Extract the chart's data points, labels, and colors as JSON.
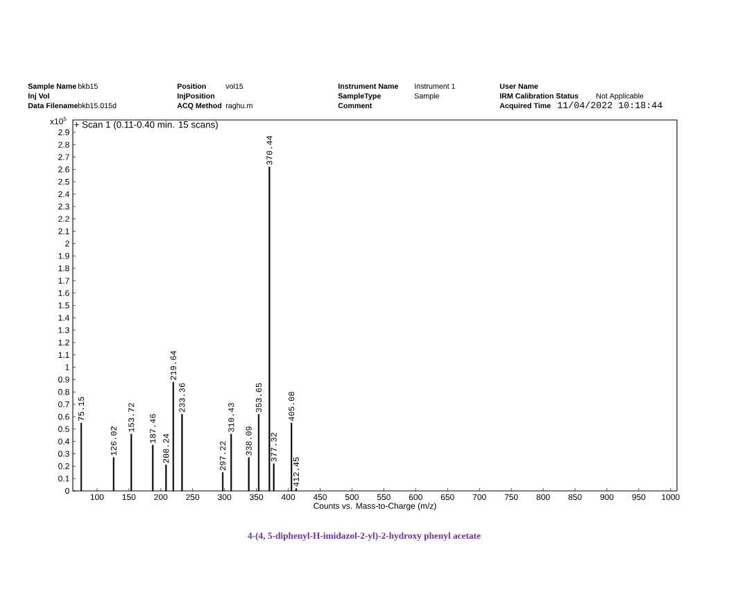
{
  "chart_data": {
    "type": "bar",
    "xlabel": "Counts vs. Mass-to-Charge (m/z)",
    "x": [
      75.15,
      126.02,
      153.72,
      187.46,
      208.24,
      219.64,
      233.36,
      297.22,
      310.43,
      338.09,
      353.65,
      370.44,
      377.32,
      405.08,
      412.45
    ],
    "values": [
      0.55,
      0.27,
      0.46,
      0.37,
      0.21,
      0.88,
      0.62,
      0.15,
      0.46,
      0.27,
      0.62,
      2.62,
      0.22,
      0.55,
      0.02
    ],
    "color": "#000000",
    "xlim": [
      62,
      1010
    ],
    "xticks": [
      100,
      150,
      200,
      250,
      300,
      350,
      400,
      450,
      500,
      550,
      600,
      650,
      700,
      750,
      800,
      850,
      900,
      950,
      1000
    ],
    "ylim": [
      0,
      3.0
    ],
    "yticks": [
      0,
      0.1,
      0.2,
      0.3,
      0.4,
      0.5,
      0.6,
      0.7,
      0.8,
      0.9,
      1,
      1.1,
      1.2,
      1.3,
      1.4,
      1.5,
      1.6,
      1.7,
      1.8,
      1.9,
      2,
      2.1,
      2.2,
      2.3,
      2.4,
      2.5,
      2.6,
      2.7,
      2.8,
      2.9
    ],
    "annotations": [
      "Sample Name",
      "bkb15",
      "Position",
      "vol15",
      "Instrument Name",
      "Instrument 1",
      "User Name",
      "Inj Vol",
      "InjPosition",
      "SampleType",
      "Sample",
      "IRM Calibration Status",
      "Not Applicable",
      "Data Filename",
      "bkb15.015d",
      "ACQ Method",
      "raghu.m",
      "Comment",
      "Acquired Time",
      "11/04/2022  10:18:44",
      "+ Scan 1 (0.11-0.40 min. 15 scans)",
      "x10$^{5}$",
      "4-(4, 5-diphenyl-H-imidazol-2-yl)-2-hydroxy phenyl acetate",
      {
        "text": "75.15",
        "x": 75.15,
        "y": 0.55
      },
      {
        "text": "126.02",
        "x": 126.02,
        "y": 0.27
      },
      {
        "text": "153.72",
        "x": 153.72,
        "y": 0.46
      },
      {
        "text": "187.46",
        "x": 187.46,
        "y": 0.37
      },
      {
        "text": "208.24",
        "x": 208.24,
        "y": 0.21
      },
      {
        "text": "219.64",
        "x": 219.64,
        "y": 0.88
      },
      {
        "text": "233.36",
        "x": 233.36,
        "y": 0.62
      },
      {
        "text": "297.22",
        "x": 297.22,
        "y": 0.15
      },
      {
        "text": "310.43",
        "x": 310.43,
        "y": 0.46
      },
      {
        "text": "338.09",
        "x": 338.09,
        "y": 0.27
      },
      {
        "text": "353.65",
        "x": 353.65,
        "y": 0.62
      },
      {
        "text": "370.44",
        "x": 370.44,
        "y": 2.62
      },
      {
        "text": "377.32",
        "x": 377.32,
        "y": 0.22
      },
      {
        "text": "405.08",
        "x": 405.08,
        "y": 0.55
      },
      {
        "text": "412.45",
        "x": 412.45,
        "y": 0.02
      }
    ]
  }
}
